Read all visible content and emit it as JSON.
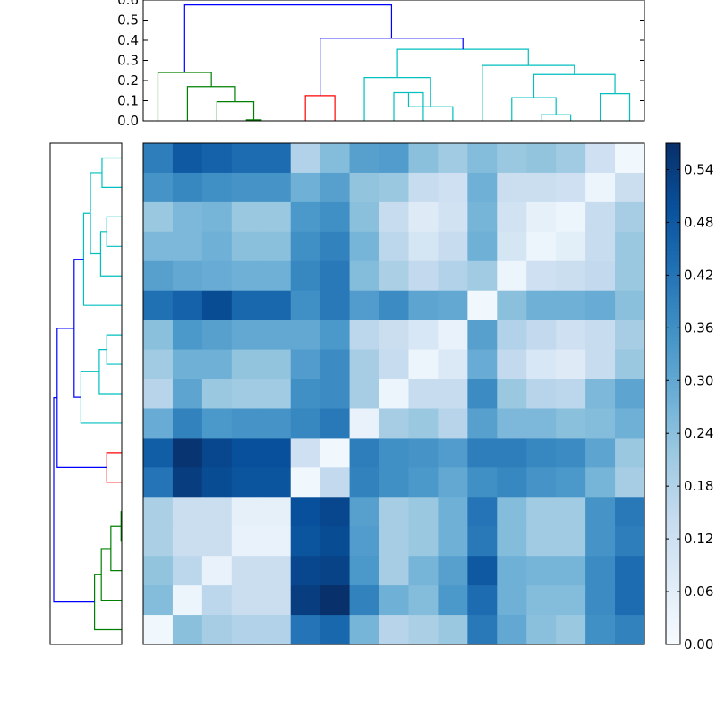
{
  "chart_data": [
    {
      "type": "dendrogram",
      "orientation": "top",
      "ylim": [
        0,
        0.6
      ],
      "yticks": [
        "0.0",
        "0.1",
        "0.2",
        "0.3",
        "0.4",
        "0.5",
        "0.6"
      ],
      "leaf_count": 17,
      "colors": {
        "root": "#0000ff",
        "green": "#008000",
        "red": "#ff0000",
        "cyan": "#00bfbf"
      },
      "links": [
        {
          "a": 3.5,
          "b": 4.0,
          "h": 0.005,
          "color": "#008000"
        },
        {
          "a": 2.5,
          "b": 3.75,
          "h": 0.095,
          "color": "#008000"
        },
        {
          "a": 1.5,
          "b": 3.125,
          "h": 0.17,
          "color": "#008000"
        },
        {
          "a": 0.5,
          "b": 2.3125,
          "h": 0.24,
          "color": "#008000"
        },
        {
          "a": 5.5,
          "b": 6.5,
          "h": 0.125,
          "color": "#ff0000"
        },
        {
          "a": 8.5,
          "b": 9.5,
          "h": 0.14,
          "color": "#00bfbf"
        },
        {
          "a": 9.0,
          "b": 10.5,
          "h": 0.07,
          "color": "#00bfbf"
        },
        {
          "a": 7.5,
          "b": 9.75,
          "h": 0.215,
          "color": "#00bfbf"
        },
        {
          "a": 13.5,
          "b": 14.5,
          "h": 0.03,
          "color": "#00bfbf"
        },
        {
          "a": 12.5,
          "b": 14.0,
          "h": 0.115,
          "color": "#00bfbf"
        },
        {
          "a": 15.5,
          "b": 16.5,
          "h": 0.135,
          "color": "#00bfbf"
        },
        {
          "a": 13.25,
          "b": 16.0,
          "h": 0.23,
          "color": "#00bfbf"
        },
        {
          "a": 11.5,
          "b": 14.625,
          "h": 0.275,
          "color": "#00bfbf"
        },
        {
          "a": 8.625,
          "b": 13.0625,
          "h": 0.355,
          "color": "#00bfbf"
        },
        {
          "a": 6.0,
          "b": 10.84375,
          "h": 0.41,
          "color": "#0000ff"
        },
        {
          "a": 1.40625,
          "b": 8.421875,
          "h": 0.575,
          "color": "#0000ff"
        }
      ]
    },
    {
      "type": "dendrogram",
      "orientation": "left",
      "leaf_count": 17,
      "links": [
        {
          "a": 0.5,
          "b": 1.5,
          "h": 0.29,
          "color": "#00bfbf"
        },
        {
          "a": 2.5,
          "b": 3.5,
          "h": 0.22,
          "color": "#00bfbf"
        },
        {
          "a": 3.0,
          "b": 4.5,
          "h": 0.31,
          "color": "#00bfbf"
        },
        {
          "a": 1.0,
          "b": 3.75,
          "h": 0.46,
          "color": "#00bfbf"
        },
        {
          "a": 2.375,
          "b": 5.5,
          "h": 0.56,
          "color": "#00bfbf"
        },
        {
          "a": 6.5,
          "b": 7.5,
          "h": 0.22,
          "color": "#00bfbf"
        },
        {
          "a": 7.0,
          "b": 8.5,
          "h": 0.33,
          "color": "#00bfbf"
        },
        {
          "a": 7.75,
          "b": 9.5,
          "h": 0.6,
          "color": "#00bfbf"
        },
        {
          "a": 3.9375,
          "b": 8.625,
          "h": 0.7,
          "color": "#0000ff"
        },
        {
          "a": 10.5,
          "b": 11.5,
          "h": 0.22,
          "color": "#ff0000"
        },
        {
          "a": 6.28125,
          "b": 11.0,
          "h": 0.95,
          "color": "#0000ff"
        },
        {
          "a": 12.5,
          "b": 13.5,
          "h": 0.01,
          "color": "#008000"
        },
        {
          "a": 13.0,
          "b": 14.5,
          "h": 0.16,
          "color": "#008000"
        },
        {
          "a": 13.75,
          "b": 15.5,
          "h": 0.3,
          "color": "#008000"
        },
        {
          "a": 14.625,
          "b": 16.5,
          "h": 0.4,
          "color": "#008000"
        },
        {
          "a": 8.640625,
          "b": 15.5625,
          "h": 1.0,
          "color": "#0000ff"
        }
      ]
    },
    {
      "type": "heatmap",
      "colormap": "Blues",
      "vmin": 0,
      "vmax": 0.57,
      "values": [
        [
          0.4,
          0.48,
          0.46,
          0.44,
          0.44,
          0.18,
          0.25,
          0.32,
          0.33,
          0.24,
          0.21,
          0.25,
          0.22,
          0.23,
          0.21,
          0.12,
          0.02
        ],
        [
          0.35,
          0.38,
          0.36,
          0.35,
          0.35,
          0.28,
          0.32,
          0.23,
          0.22,
          0.14,
          0.12,
          0.28,
          0.13,
          0.13,
          0.12,
          0.03,
          0.13
        ],
        [
          0.22,
          0.26,
          0.27,
          0.22,
          0.22,
          0.34,
          0.36,
          0.24,
          0.14,
          0.07,
          0.11,
          0.27,
          0.11,
          0.05,
          0.03,
          0.14,
          0.2
        ],
        [
          0.26,
          0.26,
          0.28,
          0.24,
          0.24,
          0.36,
          0.39,
          0.27,
          0.16,
          0.1,
          0.14,
          0.28,
          0.1,
          0.03,
          0.06,
          0.14,
          0.22
        ],
        [
          0.32,
          0.3,
          0.29,
          0.28,
          0.28,
          0.38,
          0.41,
          0.25,
          0.19,
          0.15,
          0.18,
          0.21,
          0.03,
          0.12,
          0.13,
          0.15,
          0.22
        ],
        [
          0.43,
          0.46,
          0.51,
          0.45,
          0.45,
          0.36,
          0.41,
          0.33,
          0.37,
          0.31,
          0.3,
          0.02,
          0.24,
          0.28,
          0.28,
          0.29,
          0.24
        ],
        [
          0.24,
          0.34,
          0.32,
          0.3,
          0.3,
          0.3,
          0.34,
          0.16,
          0.13,
          0.09,
          0.04,
          0.32,
          0.18,
          0.15,
          0.12,
          0.14,
          0.2
        ],
        [
          0.21,
          0.28,
          0.28,
          0.23,
          0.23,
          0.33,
          0.37,
          0.2,
          0.14,
          0.03,
          0.08,
          0.29,
          0.15,
          0.09,
          0.07,
          0.14,
          0.22
        ],
        [
          0.17,
          0.31,
          0.22,
          0.21,
          0.21,
          0.36,
          0.37,
          0.2,
          0.03,
          0.14,
          0.14,
          0.37,
          0.22,
          0.17,
          0.16,
          0.26,
          0.31
        ],
        [
          0.29,
          0.39,
          0.34,
          0.35,
          0.35,
          0.38,
          0.41,
          0.04,
          0.2,
          0.22,
          0.17,
          0.32,
          0.26,
          0.26,
          0.24,
          0.25,
          0.28
        ],
        [
          0.47,
          0.56,
          0.52,
          0.5,
          0.5,
          0.12,
          0.02,
          0.4,
          0.36,
          0.35,
          0.33,
          0.4,
          0.4,
          0.38,
          0.37,
          0.31,
          0.22
        ],
        [
          0.42,
          0.54,
          0.51,
          0.49,
          0.49,
          0.02,
          0.15,
          0.39,
          0.36,
          0.34,
          0.3,
          0.36,
          0.38,
          0.35,
          0.34,
          0.27,
          0.2
        ],
        [
          0.19,
          0.13,
          0.13,
          0.05,
          0.05,
          0.5,
          0.52,
          0.32,
          0.2,
          0.22,
          0.28,
          0.42,
          0.25,
          0.21,
          0.21,
          0.35,
          0.41
        ],
        [
          0.19,
          0.13,
          0.13,
          0.04,
          0.04,
          0.49,
          0.51,
          0.33,
          0.2,
          0.22,
          0.28,
          0.41,
          0.25,
          0.21,
          0.21,
          0.35,
          0.4
        ],
        [
          0.23,
          0.16,
          0.04,
          0.13,
          0.13,
          0.52,
          0.53,
          0.34,
          0.2,
          0.27,
          0.32,
          0.48,
          0.28,
          0.27,
          0.27,
          0.37,
          0.44
        ],
        [
          0.25,
          0.03,
          0.16,
          0.13,
          0.13,
          0.54,
          0.57,
          0.39,
          0.28,
          0.25,
          0.34,
          0.44,
          0.28,
          0.25,
          0.25,
          0.37,
          0.44
        ],
        [
          0.02,
          0.24,
          0.2,
          0.18,
          0.18,
          0.42,
          0.45,
          0.27,
          0.17,
          0.19,
          0.22,
          0.41,
          0.3,
          0.24,
          0.22,
          0.36,
          0.39
        ]
      ]
    },
    {
      "type": "colorbar",
      "colormap": "Blues",
      "vmin": 0,
      "vmax": 0.57,
      "ticks": [
        "0.00",
        "0.06",
        "0.12",
        "0.18",
        "0.24",
        "0.30",
        "0.36",
        "0.42",
        "0.48",
        "0.54"
      ]
    }
  ]
}
